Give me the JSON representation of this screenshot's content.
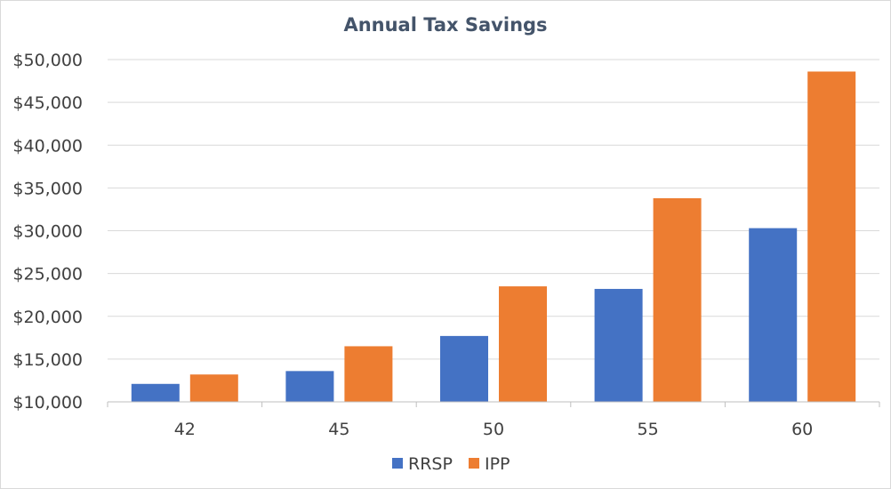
{
  "chart_data": {
    "type": "bar",
    "title": "Annual Tax Savings",
    "xlabel": "",
    "ylabel": "",
    "categories": [
      "42",
      "45",
      "50",
      "55",
      "60"
    ],
    "series": [
      {
        "name": "RRSP",
        "color": "#4472c4",
        "values": [
          12100,
          13600,
          17700,
          23200,
          30300
        ]
      },
      {
        "name": "IPP",
        "color": "#ed7d31",
        "values": [
          13200,
          16500,
          23500,
          33800,
          48600
        ]
      }
    ],
    "ylim": [
      10000,
      50000
    ],
    "ytick_values": [
      10000,
      15000,
      20000,
      25000,
      30000,
      35000,
      40000,
      45000,
      50000
    ],
    "ytick_labels": [
      "$10,000",
      "$15,000",
      "$20,000",
      "$25,000",
      "$30,000",
      "$35,000",
      "$40,000",
      "$45,000",
      "$50,000"
    ],
    "grid": true,
    "legend_position": "bottom"
  }
}
